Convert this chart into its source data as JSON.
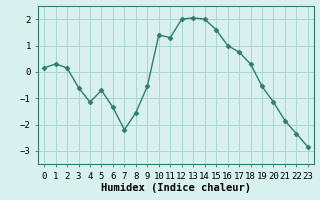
{
  "x": [
    0,
    1,
    2,
    3,
    4,
    5,
    6,
    7,
    8,
    9,
    10,
    11,
    12,
    13,
    14,
    15,
    16,
    17,
    18,
    19,
    20,
    21,
    22,
    23
  ],
  "y": [
    0.15,
    0.3,
    0.15,
    -0.6,
    -1.15,
    -0.7,
    -1.35,
    -2.2,
    -1.55,
    -0.55,
    1.4,
    1.3,
    2.0,
    2.05,
    2.0,
    1.6,
    1.0,
    0.75,
    0.3,
    -0.55,
    -1.15,
    -1.85,
    -2.35,
    -2.85
  ],
  "line_color": "#2e7d6e",
  "marker": "D",
  "marker_size": 2.5,
  "bg_color": "#d8f0ee",
  "grid_color": "#a8d8d0",
  "xlabel": "Humidex (Indice chaleur)",
  "ylim": [
    -3.5,
    2.5
  ],
  "xlim": [
    -0.5,
    23.5
  ],
  "yticks": [
    -3,
    -2,
    -1,
    0,
    1,
    2
  ],
  "xtick_vals": [
    0,
    1,
    2,
    3,
    4,
    5,
    6,
    7,
    8,
    9,
    10,
    11,
    12,
    13,
    14,
    15,
    16,
    17,
    18,
    19,
    20,
    21,
    22,
    23
  ],
  "xtick_labels": [
    "0",
    "1",
    "2",
    "3",
    "4",
    "5",
    "6",
    "7",
    "8",
    "9",
    "10",
    "11",
    "12",
    "13",
    "14",
    "15",
    "16",
    "17",
    "18",
    "19",
    "20",
    "21",
    "22",
    "23"
  ],
  "xlabel_fontsize": 7.5,
  "tick_fontsize": 6.5,
  "spine_color": "#2e7d6e"
}
